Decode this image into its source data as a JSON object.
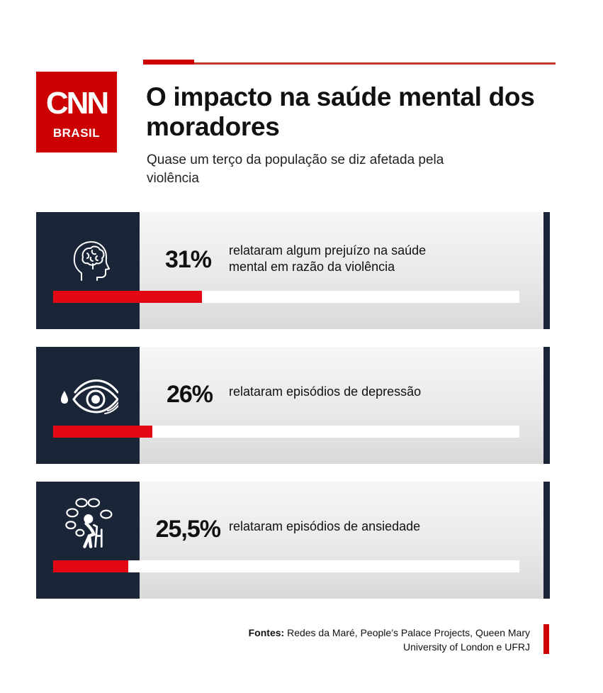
{
  "brand": {
    "logo_text": "CNN",
    "logo_sub": "BRASIL",
    "color": "#cc0000"
  },
  "header": {
    "title": "O impacto na saúde mental dos moradores",
    "subtitle": "Quase um terço da população se diz afetada pela violência"
  },
  "chart_data": {
    "type": "bar",
    "orientation": "horizontal",
    "value_unit": "%",
    "xlim": [
      0,
      100
    ],
    "grid": false,
    "bar_color": "#e30613",
    "items": [
      {
        "label": "31%",
        "value": 31,
        "description": "relataram algum prejuízo na saúde mental em razão da violência",
        "icon": "brain-head-icon"
      },
      {
        "label": "26%",
        "value": 26,
        "description": "relataram episódios de depressão",
        "icon": "crying-eye-icon"
      },
      {
        "label": "25,5%",
        "value": 25.5,
        "description": "relataram episódios de ansiedade",
        "icon": "anxious-person-icon"
      }
    ]
  },
  "footer": {
    "source_label": "Fontes:",
    "source_text": "Redes da Maré, People’s Palace Projects, Queen Mary University of London e UFRJ"
  }
}
